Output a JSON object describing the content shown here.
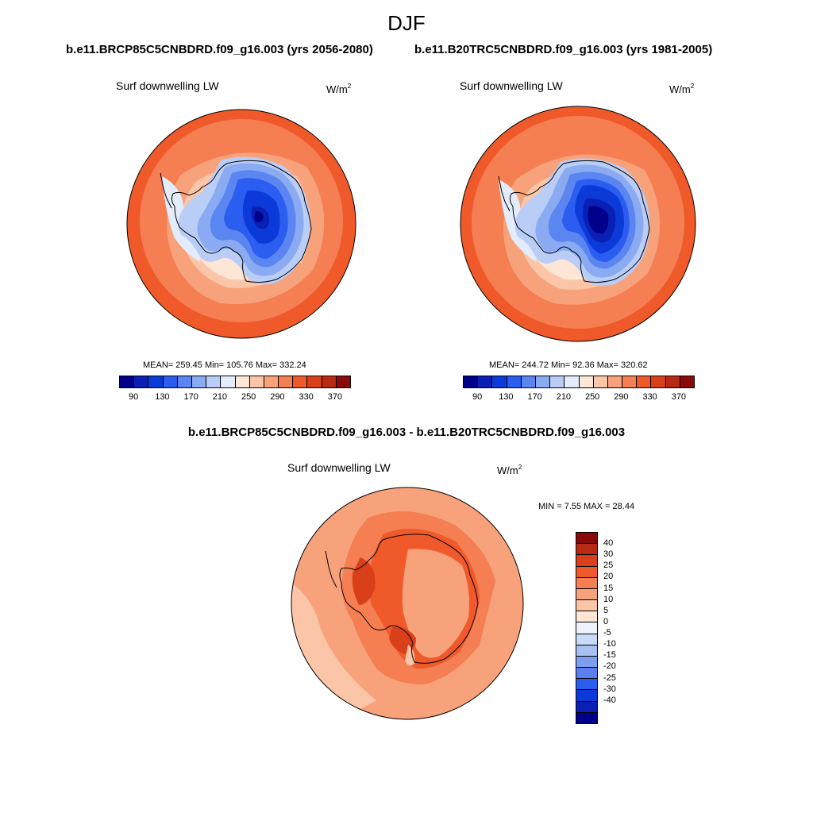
{
  "title": "DJF",
  "panels": {
    "left": {
      "case_title": "b.e11.BRCP85C5CNBDRD.f09_g16.003 (yrs 2056-2080)",
      "variable": "Surf downwelling LW",
      "units_base": "W/m",
      "units_exp": "2",
      "stats": "MEAN= 259.45  Min= 105.76  Max= 332.24"
    },
    "right": {
      "case_title": "b.e11.B20TRC5CNBDRD.f09_g16.003 (yrs 1981-2005)",
      "variable": "Surf downwelling LW",
      "units_base": "W/m",
      "units_exp": "2",
      "stats": "MEAN= 244.72  Min= 92.36  Max= 320.62"
    },
    "diff": {
      "case_title": "b.e11.BRCP85C5CNBDRD.f09_g16.003 - b.e11.B20TRC5CNBDRD.f09_g16.003",
      "variable": "Surf downwelling LW",
      "units_base": "W/m",
      "units_exp": "2",
      "stats": "MIN =   7.55 MAX =  28.44"
    }
  },
  "abs_colorbar": {
    "colors": [
      "#00008a",
      "#0a1fb4",
      "#0c3ad8",
      "#2a5df0",
      "#5b86f2",
      "#8aaaf2",
      "#b9cdf6",
      "#e3ecfa",
      "#fde6d6",
      "#fbc6a8",
      "#f8a27c",
      "#f57e52",
      "#f05a2a",
      "#d9401a",
      "#b82a12",
      "#8a0a0a"
    ],
    "labels": [
      "90",
      "130",
      "170",
      "210",
      "250",
      "290",
      "330",
      "370"
    ]
  },
  "diff_colorbar": {
    "colors": [
      "#8a0a0a",
      "#b82a12",
      "#d9401a",
      "#f05a2a",
      "#f57e52",
      "#f8a27c",
      "#fbc6a8",
      "#fde6d6",
      "#eef3fb",
      "#c9daf6",
      "#a8c0f2",
      "#7e9ef0",
      "#5b7ff0",
      "#2a5df0",
      "#0c3ad8",
      "#0a1fb4",
      "#00008a"
    ],
    "labels": [
      "40",
      "30",
      "25",
      "20",
      "15",
      "10",
      "5",
      "0",
      "-5",
      "-10",
      "-15",
      "-20",
      "-25",
      "-30",
      "-40"
    ]
  }
}
